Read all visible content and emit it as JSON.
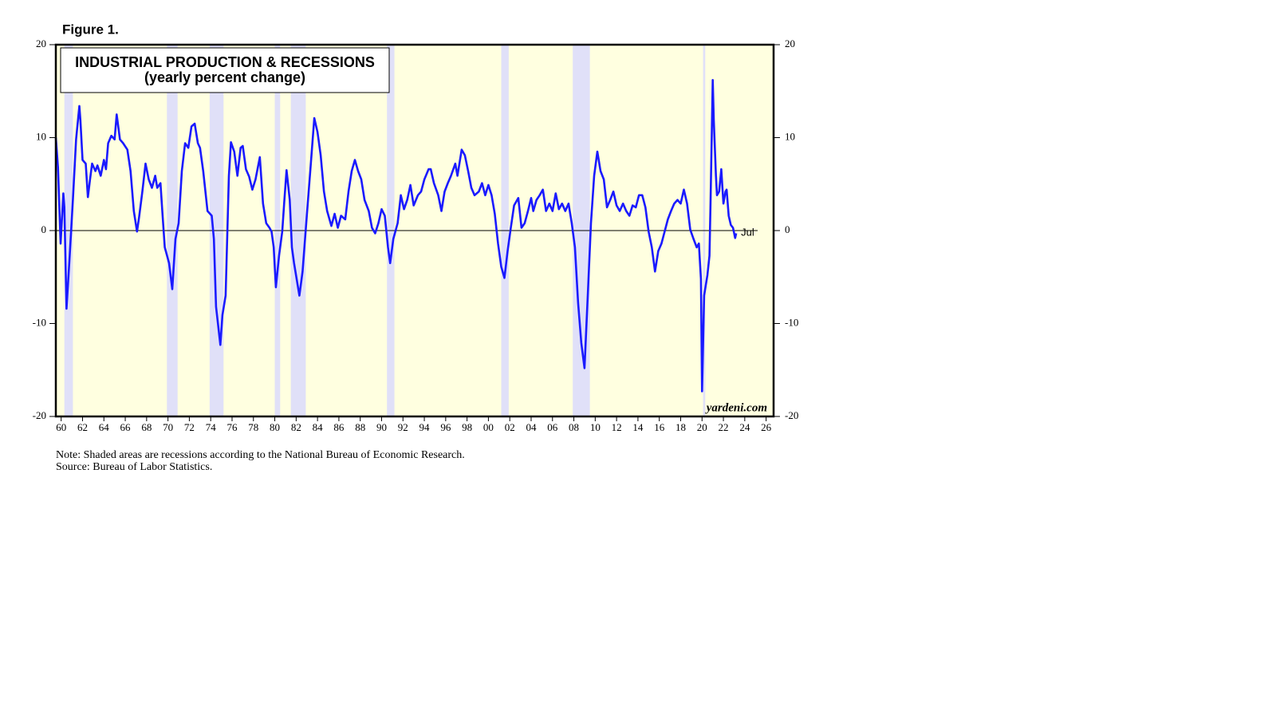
{
  "chart_data": {
    "type": "line",
    "figure_label": "Figure 1.",
    "title": "INDUSTRIAL PRODUCTION & RECESSIONS",
    "subtitle": "(yearly percent change)",
    "end_label": "Jul",
    "source_mark": "yardeni.com",
    "notes": [
      "Note: Shaded areas are recessions according to the National Bureau of Economic Research.",
      "Source: Bureau of Labor Statistics."
    ],
    "color": "#1a1aff",
    "recession_color": "#e0e0f8",
    "background": "#ffffe0",
    "recessions": [
      [
        1960.3,
        1961.1
      ],
      [
        1969.9,
        1970.9
      ],
      [
        1973.9,
        1975.2
      ],
      [
        1980.0,
        1980.5
      ],
      [
        1981.5,
        1982.9
      ],
      [
        1990.5,
        1991.2
      ],
      [
        2001.2,
        2001.9
      ],
      [
        2007.9,
        2009.5
      ],
      [
        2020.1,
        2020.3
      ]
    ],
    "xlim": [
      1959.5,
      2026.7
    ],
    "xticks": [
      {
        "value": 1960,
        "label": "60"
      },
      {
        "value": 1962,
        "label": "62"
      },
      {
        "value": 1964,
        "label": "64"
      },
      {
        "value": 1966,
        "label": "66"
      },
      {
        "value": 1968,
        "label": "68"
      },
      {
        "value": 1970,
        "label": "70"
      },
      {
        "value": 1972,
        "label": "72"
      },
      {
        "value": 1974,
        "label": "74"
      },
      {
        "value": 1976,
        "label": "76"
      },
      {
        "value": 1978,
        "label": "78"
      },
      {
        "value": 1980,
        "label": "80"
      },
      {
        "value": 1982,
        "label": "82"
      },
      {
        "value": 1984,
        "label": "84"
      },
      {
        "value": 1986,
        "label": "86"
      },
      {
        "value": 1988,
        "label": "88"
      },
      {
        "value": 1990,
        "label": "90"
      },
      {
        "value": 1992,
        "label": "92"
      },
      {
        "value": 1994,
        "label": "94"
      },
      {
        "value": 1996,
        "label": "96"
      },
      {
        "value": 1998,
        "label": "98"
      },
      {
        "value": 2000,
        "label": "00"
      },
      {
        "value": 2002,
        "label": "02"
      },
      {
        "value": 2004,
        "label": "04"
      },
      {
        "value": 2006,
        "label": "06"
      },
      {
        "value": 2008,
        "label": "08"
      },
      {
        "value": 2010,
        "label": "10"
      },
      {
        "value": 2012,
        "label": "12"
      },
      {
        "value": 2014,
        "label": "14"
      },
      {
        "value": 2016,
        "label": "16"
      },
      {
        "value": 2018,
        "label": "18"
      },
      {
        "value": 2020,
        "label": "20"
      },
      {
        "value": 2022,
        "label": "22"
      },
      {
        "value": 2024,
        "label": "24"
      },
      {
        "value": 2026,
        "label": "26"
      }
    ],
    "ylim": [
      -20,
      20
    ],
    "yticks": [
      -20,
      -10,
      0,
      10,
      20
    ],
    "x": [
      1959.5,
      1959.7,
      1959.95,
      1960.2,
      1960.3,
      1960.5,
      1960.8,
      1961.1,
      1961.4,
      1961.7,
      1961.8,
      1962.0,
      1962.3,
      1962.5,
      1962.7,
      1962.9,
      1963.2,
      1963.4,
      1963.7,
      1964.0,
      1964.2,
      1964.4,
      1964.7,
      1965.0,
      1965.2,
      1965.5,
      1965.8,
      1966.2,
      1966.5,
      1966.8,
      1967.1,
      1967.3,
      1967.6,
      1967.9,
      1968.2,
      1968.5,
      1968.8,
      1969.0,
      1969.3,
      1969.5,
      1969.7,
      1970.1,
      1970.4,
      1970.7,
      1971.0,
      1971.3,
      1971.6,
      1971.9,
      1972.2,
      1972.5,
      1972.8,
      1973.0,
      1973.3,
      1973.7,
      1974.1,
      1974.3,
      1974.5,
      1974.9,
      1975.1,
      1975.4,
      1975.7,
      1975.9,
      1976.2,
      1976.5,
      1976.8,
      1977.0,
      1977.3,
      1977.6,
      1977.9,
      1978.2,
      1978.6,
      1978.9,
      1979.2,
      1979.5,
      1979.7,
      1979.9,
      1980.1,
      1980.4,
      1980.7,
      1980.9,
      1981.1,
      1981.4,
      1981.6,
      1981.8,
      1982.3,
      1982.6,
      1983.0,
      1983.4,
      1983.7,
      1984.0,
      1984.3,
      1984.6,
      1984.9,
      1985.3,
      1985.6,
      1985.9,
      1986.2,
      1986.6,
      1986.9,
      1987.2,
      1987.5,
      1987.8,
      1988.1,
      1988.4,
      1988.8,
      1989.1,
      1989.4,
      1989.7,
      1990.0,
      1990.3,
      1990.6,
      1990.8,
      1991.1,
      1991.5,
      1991.8,
      1992.1,
      1992.4,
      1992.7,
      1993.0,
      1993.4,
      1993.7,
      1994.0,
      1994.4,
      1994.6,
      1994.9,
      1995.3,
      1995.6,
      1995.9,
      1996.2,
      1996.5,
      1996.9,
      1997.1,
      1997.5,
      1997.8,
      1998.1,
      1998.4,
      1998.7,
      1999.1,
      1999.4,
      1999.7,
      2000.0,
      2000.3,
      2000.6,
      2000.9,
      2001.2,
      2001.5,
      2001.8,
      2002.1,
      2002.4,
      2002.8,
      2003.1,
      2003.4,
      2003.7,
      2004.0,
      2004.2,
      2004.5,
      2004.8,
      2005.1,
      2005.4,
      2005.7,
      2006.0,
      2006.3,
      2006.6,
      2006.9,
      2007.2,
      2007.5,
      2007.8,
      2008.1,
      2008.4,
      2008.7,
      2009.0,
      2009.3,
      2009.6,
      2009.9,
      2010.2,
      2010.5,
      2010.8,
      2011.1,
      2011.4,
      2011.7,
      2012.0,
      2012.3,
      2012.6,
      2012.9,
      2013.2,
      2013.5,
      2013.8,
      2014.1,
      2014.4,
      2014.7,
      2015.0,
      2015.3,
      2015.6,
      2015.9,
      2016.2,
      2016.5,
      2016.8,
      2017.1,
      2017.4,
      2017.7,
      2018.0,
      2018.3,
      2018.6,
      2018.9,
      2019.2,
      2019.5,
      2019.7,
      2019.9,
      2020.0,
      2020.2,
      2020.5,
      2020.7,
      2020.8,
      2021.0,
      2021.1,
      2021.3,
      2021.4,
      2021.6,
      2021.8,
      2022.0,
      2022.2,
      2022.3,
      2022.5,
      2022.7,
      2022.9,
      2023.1,
      2023.2
    ],
    "values": [
      10,
      6.8,
      -1.4,
      4,
      2.5,
      -8.4,
      -2.7,
      3.3,
      9.8,
      13.4,
      11.9,
      7.6,
      7.2,
      3.6,
      5.5,
      7.2,
      6.4,
      7,
      5.9,
      7.6,
      6.6,
      9.4,
      10.2,
      9.8,
      12.5,
      9.8,
      9.4,
      8.7,
      6.4,
      2.1,
      -0.1,
      1.5,
      4.2,
      7.2,
      5.5,
      4.6,
      5.9,
      4.6,
      5.1,
      1.6,
      -1.8,
      -3.5,
      -6.3,
      -0.9,
      0.8,
      6.4,
      9.4,
      8.9,
      11.2,
      11.5,
      9.4,
      8.9,
      6.4,
      2.1,
      1.6,
      -0.9,
      -8.2,
      -12.3,
      -9.1,
      -7,
      5.9,
      9.5,
      8.5,
      5.9,
      8.9,
      9.1,
      6.6,
      5.8,
      4.4,
      5.5,
      7.9,
      2.9,
      0.8,
      0.3,
      -0.1,
      -1.8,
      -6.1,
      -2.7,
      -0.1,
      3.3,
      6.5,
      3.3,
      -1.8,
      -3.5,
      -7,
      -4.4,
      1.6,
      7.6,
      12.1,
      10.6,
      8.1,
      4.2,
      2.1,
      0.5,
      1.8,
      0.3,
      1.6,
      1.2,
      4.2,
      6.4,
      7.6,
      6.4,
      5.5,
      3.3,
      2.1,
      0.3,
      -0.3,
      0.8,
      2.3,
      1.6,
      -1.8,
      -3.5,
      -0.9,
      0.8,
      3.8,
      2.3,
      3.3,
      4.9,
      2.7,
      3.8,
      4.2,
      5.5,
      6.6,
      6.6,
      5.1,
      3.8,
      2.1,
      4.2,
      5.1,
      5.9,
      7.2,
      5.9,
      8.7,
      8.1,
      6.4,
      4.6,
      3.8,
      4.2,
      5.1,
      3.8,
      4.9,
      3.8,
      1.8,
      -1.4,
      -3.9,
      -5.1,
      -2.2,
      0.3,
      2.7,
      3.5,
      0.3,
      0.8,
      2.1,
      3.5,
      2.1,
      3.3,
      3.8,
      4.4,
      2.1,
      2.9,
      2.1,
      4,
      2.3,
      2.9,
      2.1,
      2.9,
      0.8,
      -1.8,
      -7.8,
      -12.1,
      -14.8,
      -7,
      0.8,
      5.9,
      8.5,
      6.4,
      5.5,
      2.5,
      3.3,
      4.2,
      2.7,
      2.1,
      2.9,
      2.1,
      1.6,
      2.7,
      2.5,
      3.8,
      3.8,
      2.5,
      -0.1,
      -1.8,
      -4.4,
      -2.2,
      -1.4,
      -0.1,
      1.2,
      2.1,
      2.9,
      3.3,
      2.9,
      4.4,
      2.9,
      0.1,
      -0.9,
      -1.8,
      -1.4,
      -5.2,
      -17.3,
      -7,
      -4.8,
      -2.7,
      3.3,
      16.2,
      11.9,
      5.9,
      3.8,
      4.2,
      6.6,
      2.9,
      4.2,
      4.4,
      1.6,
      0.6,
      0.3,
      -0.8,
      -0.3
    ]
  }
}
